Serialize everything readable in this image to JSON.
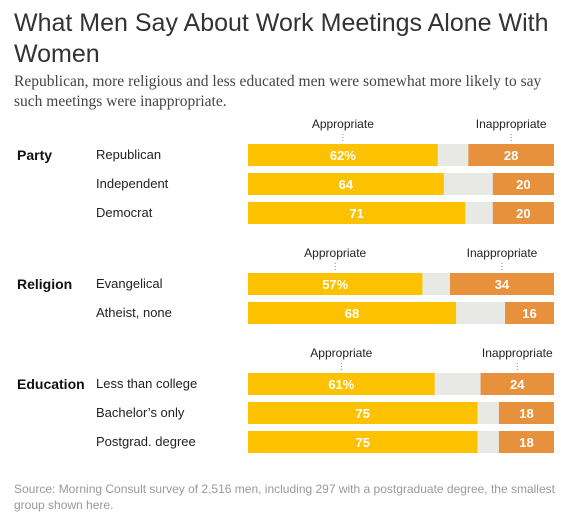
{
  "title": "What Men Say About Work Meetings Alone With Women",
  "subtitle": "Republican, more religious and less educated men were somewhat more likely to say such meetings were inappropriate.",
  "source": "Source: Morning Consult survey of 2,516 men, including 297 with a postgraduate degree, the smallest group shown here.",
  "colors": {
    "appropriate": "#fcc200",
    "neutral": "#e8e9e5",
    "inappropriate": "#e8913d"
  },
  "chart_data": {
    "type": "bar",
    "stacked": true,
    "series_labels": [
      "Appropriate",
      "Inappropriate"
    ],
    "xlim": [
      0,
      100
    ],
    "groups": [
      {
        "name": "Party",
        "header_left": "Appropriate",
        "header_right": "Inappropriate",
        "rows": [
          {
            "label": "Republican",
            "appropriate": 62,
            "appropriate_label": "62%",
            "inappropriate": 28,
            "inappropriate_label": "28"
          },
          {
            "label": "Independent",
            "appropriate": 64,
            "appropriate_label": "64",
            "inappropriate": 20,
            "inappropriate_label": "20"
          },
          {
            "label": "Democrat",
            "appropriate": 71,
            "appropriate_label": "71",
            "inappropriate": 20,
            "inappropriate_label": "20"
          }
        ]
      },
      {
        "name": "Religion",
        "header_left": "Appropriate",
        "header_right": "Inappropriate",
        "rows": [
          {
            "label": "Evangelical",
            "appropriate": 57,
            "appropriate_label": "57%",
            "inappropriate": 34,
            "inappropriate_label": "34"
          },
          {
            "label": "Atheist, none",
            "appropriate": 68,
            "appropriate_label": "68",
            "inappropriate": 16,
            "inappropriate_label": "16"
          }
        ]
      },
      {
        "name": "Education",
        "header_left": "Appropriate",
        "header_right": "Inappropriate",
        "rows": [
          {
            "label": "Less than college",
            "appropriate": 61,
            "appropriate_label": "61%",
            "inappropriate": 24,
            "inappropriate_label": "24"
          },
          {
            "label": "Bachelor’s only",
            "appropriate": 75,
            "appropriate_label": "75",
            "inappropriate": 18,
            "inappropriate_label": "18"
          },
          {
            "label": "Postgrad. degree",
            "appropriate": 75,
            "appropriate_label": "75",
            "inappropriate": 18,
            "inappropriate_label": "18"
          }
        ]
      }
    ]
  }
}
